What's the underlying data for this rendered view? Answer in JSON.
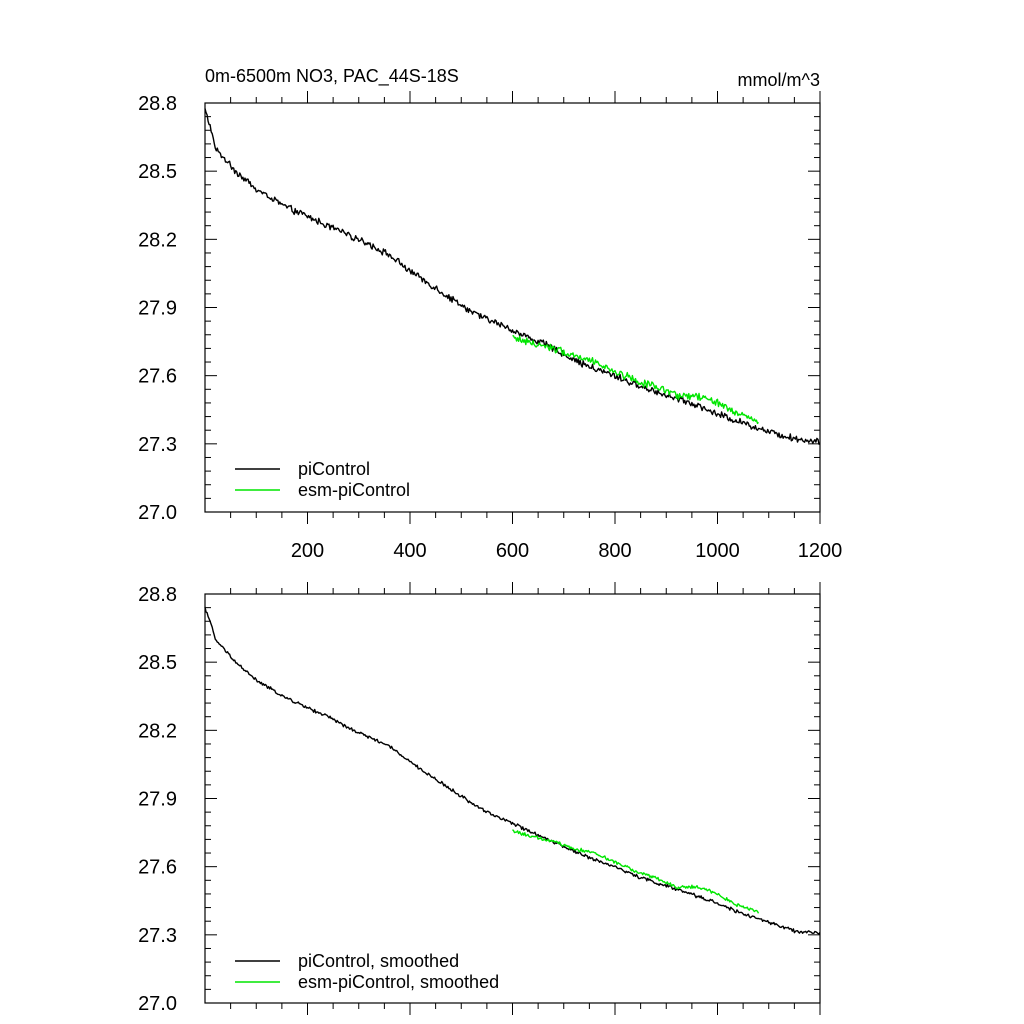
{
  "chart_data": [
    {
      "type": "line",
      "title": "0m-6500m NO3, PAC_44S-18S",
      "units": "mmol/m^3",
      "xlim": [
        0,
        1200
      ],
      "ylim": [
        27.0,
        28.8
      ],
      "xticks": [
        200,
        400,
        600,
        800,
        1000,
        1200
      ],
      "xtick_labels": [
        "200",
        "400",
        "600",
        "800",
        "1000",
        "1200"
      ],
      "yticks": [
        27.0,
        27.3,
        27.6,
        27.9,
        28.2,
        28.5,
        28.8
      ],
      "ytick_labels": [
        "27.0",
        "27.3",
        "27.6",
        "27.9",
        "28.2",
        "28.5",
        "28.8"
      ],
      "legend_position": "bottom-left",
      "series": [
        {
          "name": "piControl",
          "color": "#000000",
          "x": [
            0,
            10,
            20,
            40,
            60,
            80,
            100,
            130,
            160,
            200,
            240,
            280,
            320,
            360,
            400,
            440,
            480,
            520,
            560,
            600,
            640,
            680,
            720,
            760,
            800,
            840,
            880,
            920,
            960,
            1000,
            1040,
            1080,
            1120,
            1160,
            1200
          ],
          "values": [
            28.77,
            28.7,
            28.6,
            28.55,
            28.5,
            28.46,
            28.42,
            28.38,
            28.34,
            28.3,
            28.26,
            28.22,
            28.18,
            28.13,
            28.06,
            28.0,
            27.94,
            27.88,
            27.84,
            27.8,
            27.76,
            27.72,
            27.67,
            27.63,
            27.6,
            27.56,
            27.53,
            27.5,
            27.47,
            27.43,
            27.4,
            27.37,
            27.34,
            27.32,
            27.31
          ],
          "noise": 0.012
        },
        {
          "name": "esm-piControl",
          "color": "#00e600",
          "x": [
            600,
            640,
            680,
            720,
            760,
            800,
            840,
            880,
            920,
            960,
            1000,
            1040,
            1080
          ],
          "values": [
            27.77,
            27.74,
            27.72,
            27.69,
            27.66,
            27.62,
            27.58,
            27.55,
            27.51,
            27.51,
            27.48,
            27.43,
            27.4
          ],
          "noise": 0.013
        }
      ]
    },
    {
      "type": "line",
      "title": "",
      "units": "",
      "xlim": [
        0,
        1200
      ],
      "ylim": [
        27.0,
        28.8
      ],
      "xticks": [
        200,
        400,
        600,
        800,
        1000,
        1200
      ],
      "xtick_labels": [],
      "yticks": [
        27.0,
        27.3,
        27.6,
        27.9,
        28.2,
        28.5,
        28.8
      ],
      "ytick_labels": [
        "27.0",
        "27.3",
        "27.6",
        "27.9",
        "28.2",
        "28.5",
        "28.8"
      ],
      "legend_position": "bottom-left",
      "series": [
        {
          "name": "piControl, smoothed",
          "color": "#000000",
          "x": [
            0,
            10,
            20,
            40,
            60,
            80,
            100,
            130,
            160,
            200,
            240,
            280,
            320,
            360,
            400,
            440,
            480,
            520,
            560,
            600,
            640,
            680,
            720,
            760,
            800,
            840,
            880,
            920,
            960,
            1000,
            1040,
            1080,
            1120,
            1160,
            1200
          ],
          "values": [
            28.74,
            28.68,
            28.6,
            28.55,
            28.5,
            28.46,
            28.42,
            28.38,
            28.34,
            28.3,
            28.26,
            28.21,
            28.17,
            28.13,
            28.06,
            28.0,
            27.94,
            27.88,
            27.83,
            27.79,
            27.75,
            27.71,
            27.67,
            27.63,
            27.6,
            27.56,
            27.53,
            27.5,
            27.47,
            27.44,
            27.4,
            27.37,
            27.34,
            27.31,
            27.31
          ],
          "noise": 0.006
        },
        {
          "name": "esm-piControl, smoothed",
          "color": "#00e600",
          "x": [
            600,
            640,
            680,
            720,
            760,
            800,
            840,
            880,
            920,
            960,
            1000,
            1040,
            1080
          ],
          "values": [
            27.76,
            27.73,
            27.71,
            27.68,
            27.66,
            27.62,
            27.58,
            27.55,
            27.51,
            27.51,
            27.48,
            27.43,
            27.4
          ],
          "noise": 0.006
        }
      ]
    }
  ]
}
